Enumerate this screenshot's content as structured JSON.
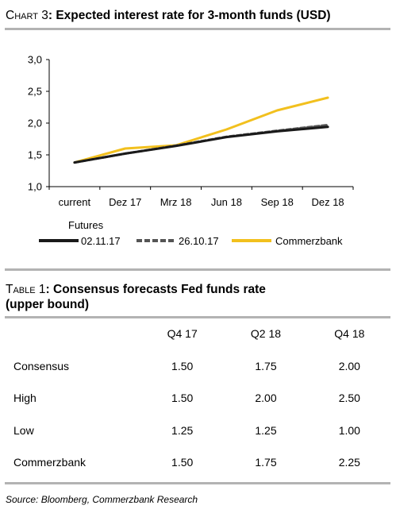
{
  "chart": {
    "prefix": "Chart 3",
    "title": "Expected interest rate for 3-month funds (USD)"
  },
  "legend_title": "Futures",
  "table": {
    "prefix": "Table 1",
    "title_line1": "Consensus forecasts Fed funds rate",
    "title_line2": "(upper bound)",
    "columns": [
      "Q4 17",
      "Q2 18",
      "Q4 18"
    ],
    "rows": [
      {
        "label": "Consensus",
        "values": [
          "1.50",
          "1.75",
          "2.00"
        ]
      },
      {
        "label": "High",
        "values": [
          "1.50",
          "2.00",
          "2.50"
        ]
      },
      {
        "label": "Low",
        "values": [
          "1.25",
          "1.25",
          "1.00"
        ]
      },
      {
        "label": "Commerzbank",
        "values": [
          "1.50",
          "1.75",
          "2.25"
        ]
      }
    ]
  },
  "source": "Source: Bloomberg, Commerzbank Research",
  "chart_data": {
    "type": "line",
    "categories": [
      "current",
      "Dez 17",
      "Mrz 18",
      "Jun 18",
      "Sep 18",
      "Dez 18"
    ],
    "ylim": [
      1.0,
      3.0
    ],
    "yticks": [
      "1,0",
      "1,5",
      "2,0",
      "2,5",
      "3,0"
    ],
    "ytick_values": [
      1.0,
      1.5,
      2.0,
      2.5,
      3.0
    ],
    "grid": false,
    "legend_position": "bottom",
    "series": [
      {
        "name": "02.11.17",
        "color": "#1a1a1a",
        "style": "solid",
        "values": [
          1.38,
          1.52,
          1.64,
          1.78,
          1.87,
          1.94
        ]
      },
      {
        "name": "26.10.17",
        "color": "#555555",
        "style": "dashed",
        "values": [
          1.38,
          1.52,
          1.645,
          1.785,
          1.88,
          1.97
        ]
      },
      {
        "name": "Commerzbank",
        "color": "#f2c01e",
        "style": "solid",
        "values": [
          1.38,
          1.6,
          1.65,
          1.9,
          2.2,
          2.4
        ]
      }
    ]
  }
}
